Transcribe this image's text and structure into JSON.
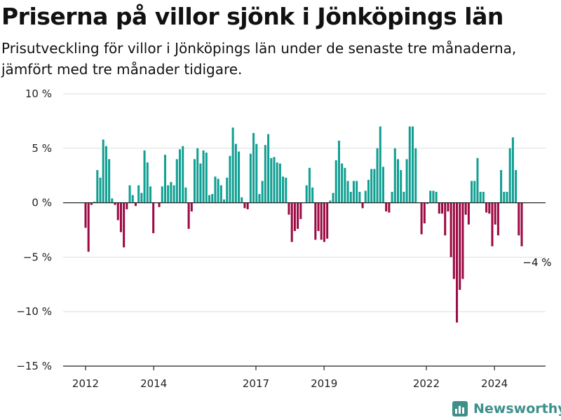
{
  "header": {
    "title": "Priserna på villor sjönk i Jönköpings län",
    "subtitle": "Prisutveckling för villor i Jönköpings län under de senaste tre månaderna, jämfört med tre månader tidigare."
  },
  "brand": {
    "name": "Newsworthy",
    "icon": "newsworthy-logo-icon",
    "color": "#3d8f8a"
  },
  "colors": {
    "positive": "#119f93",
    "negative": "#9c0a43",
    "grid": "#dddddd",
    "axis": "#222222"
  },
  "annotation": {
    "text": "−4 %"
  },
  "chart_data": {
    "type": "bar",
    "title": "Priserna på villor sjönk i Jönköpings län",
    "subtitle": "Prisutveckling för villor i Jönköpings län under de senaste tre månaderna, jämfört med tre månader tidigare.",
    "xlabel": "",
    "ylabel": "",
    "unit": "%",
    "ylim": [
      -15,
      10
    ],
    "y_ticks": [
      10,
      5,
      0,
      -5,
      -10,
      -15
    ],
    "y_tick_labels": [
      "10 %",
      "5 %",
      "0 %",
      "−5 %",
      "−10 %",
      "−15 %"
    ],
    "x_ticks": [
      2012,
      2014,
      2017,
      2019,
      2022,
      2024
    ],
    "x_tick_labels": [
      "2012",
      "2014",
      "2017",
      "2019",
      "2022",
      "2024"
    ],
    "x_start": 2012.0,
    "x_end": 2024.8,
    "frequency": "monthly",
    "grid": true,
    "legend": "none",
    "values": [
      -2.3,
      -4.5,
      -0.2,
      0.1,
      3.0,
      2.3,
      5.8,
      5.2,
      4.0,
      0.4,
      -0.2,
      -1.6,
      -2.7,
      -4.1,
      -0.6,
      1.6,
      0.7,
      -0.3,
      1.6,
      0.9,
      4.8,
      3.7,
      1.5,
      -2.8,
      0.0,
      -0.4,
      1.5,
      4.4,
      1.6,
      1.9,
      1.6,
      4.0,
      4.9,
      5.2,
      1.4,
      -2.4,
      -0.8,
      4.0,
      5.0,
      3.6,
      4.8,
      4.6,
      0.7,
      0.8,
      2.4,
      2.2,
      1.6,
      0.3,
      2.3,
      4.3,
      6.9,
      5.4,
      4.7,
      0.5,
      -0.5,
      -0.6,
      4.5,
      6.4,
      5.4,
      0.8,
      2.0,
      5.3,
      6.3,
      4.1,
      4.2,
      3.7,
      3.6,
      2.4,
      2.3,
      -1.1,
      -3.6,
      -2.6,
      -2.4,
      -1.5,
      0.0,
      1.6,
      3.2,
      1.4,
      -3.4,
      -2.6,
      -3.4,
      -3.6,
      -3.3,
      0.2,
      0.9,
      3.9,
      5.7,
      3.6,
      3.2,
      2.0,
      1.0,
      2.0,
      2.0,
      1.0,
      -0.5,
      1.1,
      2.1,
      3.1,
      3.1,
      5.0,
      7.0,
      3.3,
      -0.8,
      -0.9,
      1.0,
      5.0,
      4.0,
      3.0,
      1.0,
      4.0,
      7.0,
      7.0,
      5.0,
      0.0,
      -2.9,
      -1.9,
      -0.1,
      1.1,
      1.1,
      1.0,
      -1.0,
      -1.0,
      -3.0,
      -0.8,
      -5.0,
      -7.0,
      -11.0,
      -8.0,
      -7.0,
      -1.1,
      -2.0,
      2.0,
      2.0,
      4.1,
      1.0,
      1.0,
      -0.9,
      -1.0,
      -4.0,
      -2.0,
      -3.0,
      3.0,
      1.0,
      1.0,
      5.0,
      6.0,
      3.0,
      -3.0,
      -4.0
    ]
  }
}
